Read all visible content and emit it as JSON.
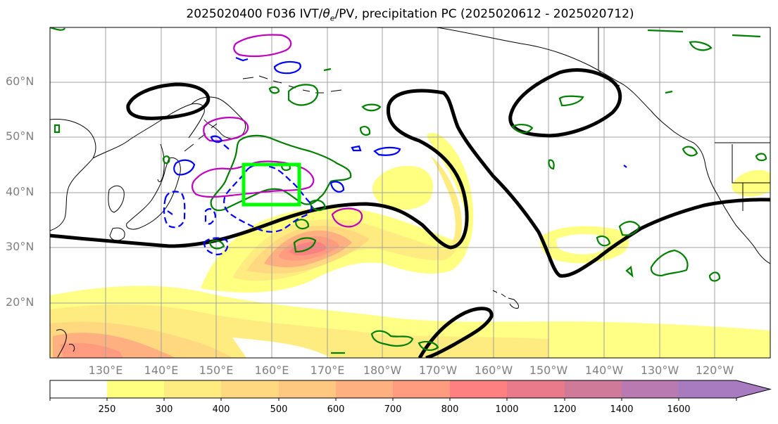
{
  "title": {
    "prefix": "2025020400 F036 IVT/",
    "theta": "θ",
    "theta_sub": "e",
    "suffix": "/PV, precipitation PC (2025020612 - 2025020712)"
  },
  "map": {
    "projection": "PlateCarree",
    "lon_range": [
      120,
      250
    ],
    "lat_range": [
      10,
      70
    ],
    "lat_labels": [
      "60°N",
      "50°N",
      "40°N",
      "30°N",
      "20°N"
    ],
    "lon_labels": [
      "130°E",
      "140°E",
      "150°E",
      "160°E",
      "170°E",
      "180°W",
      "170°W",
      "160°W",
      "150°W",
      "140°W",
      "130°W",
      "120°W"
    ],
    "grid": true,
    "box_color": "#00ff00",
    "contour_colors": {
      "thick": "#000000",
      "green": "#007f00",
      "blue": "#0000ff",
      "magenta": "#bf00bf"
    }
  },
  "colorbar": {
    "levels": [
      "250",
      "300",
      "400",
      "500",
      "600",
      "700",
      "800",
      "1000",
      "1200",
      "1400",
      "1600"
    ],
    "colors": [
      "#ffffff",
      "#ffff80",
      "#ffec80",
      "#ffd880",
      "#ffc880",
      "#ffb080",
      "#ff9c80",
      "#ff8080",
      "#e87a8c",
      "#d07a9a",
      "#b87ab0",
      "#a87ac0"
    ],
    "extend": "max"
  }
}
